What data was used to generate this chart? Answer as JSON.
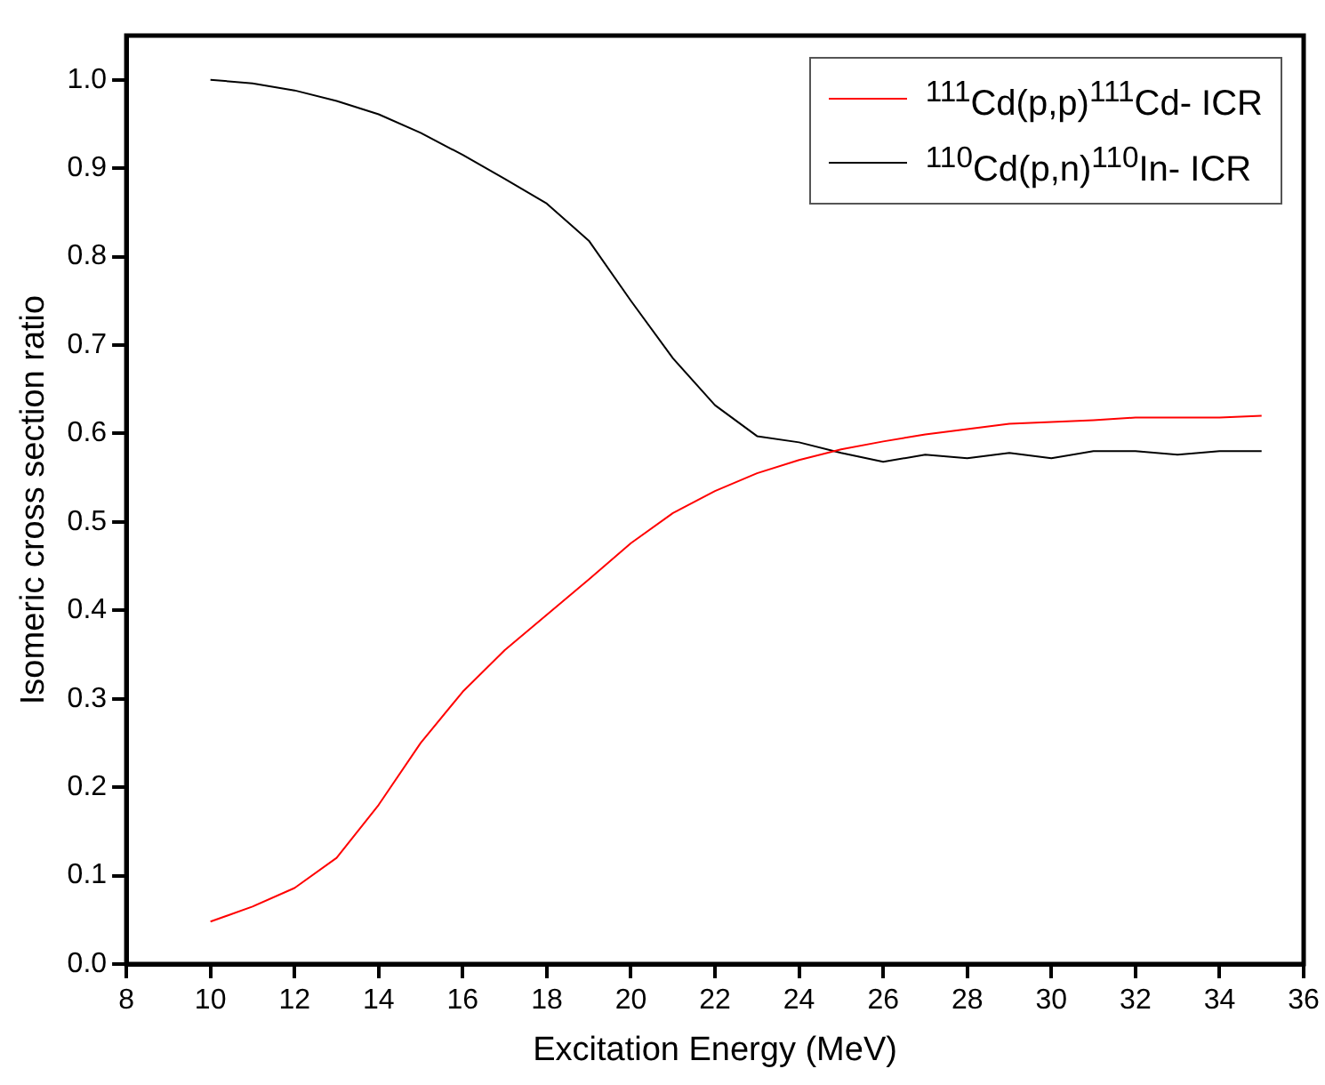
{
  "chart_data": {
    "type": "line",
    "xlabel": "Excitation Energy (MeV)",
    "ylabel": "Isomeric cross section ratio",
    "x": [
      10,
      11,
      12,
      13,
      14,
      15,
      16,
      17,
      18,
      19,
      20,
      21,
      22,
      23,
      24,
      25,
      26,
      27,
      28,
      29,
      30,
      31,
      32,
      33,
      34,
      35
    ],
    "series": [
      {
        "name": "$^{111}$Cd(p,p)$^{111}$Cd- ICR",
        "color": "#ff0000",
        "values": [
          0.048,
          0.065,
          0.086,
          0.12,
          0.18,
          0.25,
          0.308,
          0.355,
          0.395,
          0.435,
          0.476,
          0.51,
          0.535,
          0.555,
          0.57,
          0.582,
          0.591,
          0.599,
          0.605,
          0.611,
          0.613,
          0.615,
          0.618,
          0.618,
          0.618,
          0.62
        ]
      },
      {
        "name": "$^{110}$Cd(p,n)$^{110}$In- ICR",
        "color": "#000000",
        "values": [
          1.0,
          0.996,
          0.988,
          0.976,
          0.961,
          0.94,
          0.915,
          0.888,
          0.86,
          0.818,
          0.75,
          0.685,
          0.632,
          0.597,
          0.59,
          0.578,
          0.568,
          0.576,
          0.572,
          0.578,
          0.572,
          0.58,
          0.58,
          0.576,
          0.58,
          0.58
        ]
      }
    ],
    "xlim": [
      8,
      36
    ],
    "xticks": [
      8,
      10,
      12,
      14,
      16,
      18,
      20,
      22,
      24,
      26,
      28,
      30,
      32,
      34,
      36
    ],
    "ylim": [
      0,
      1.05
    ],
    "yticks": [
      {
        "value": 0,
        "label": "0.0"
      },
      {
        "value": 0.1,
        "label": "0.1"
      },
      {
        "value": 0.2,
        "label": "0.2"
      },
      {
        "value": 0.3,
        "label": "0.3"
      },
      {
        "value": 0.4,
        "label": "0.4"
      },
      {
        "value": 0.5,
        "label": "0.5"
      },
      {
        "value": 0.6,
        "label": "0.6"
      },
      {
        "value": 0.7,
        "label": "0.7"
      },
      {
        "value": 0.8,
        "label": "0.8"
      },
      {
        "value": 0.9,
        "label": "0.9"
      },
      {
        "value": 1,
        "label": "1.0"
      }
    ],
    "grid": false,
    "legend": "top right",
    "marker": "none",
    "line_style": "solid"
  }
}
